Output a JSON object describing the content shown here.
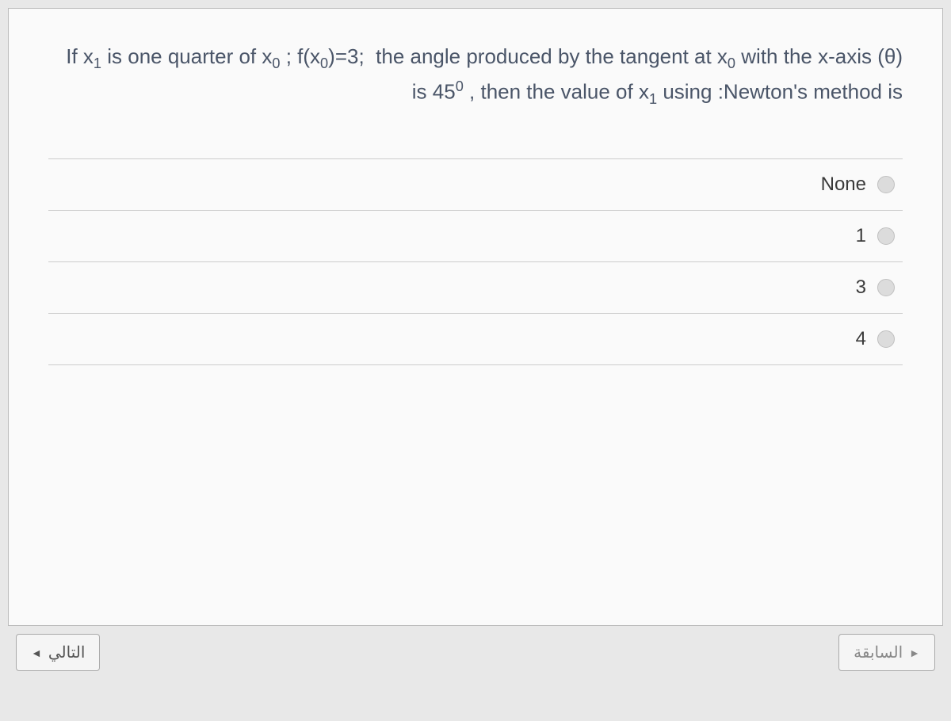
{
  "question": {
    "html": "If x<sub>1</sub> is one quarter of x<sub>0</sub> ; f(x<sub>0</sub>)=3; &nbsp;the angle produced by the tangent at x<sub>0</sub> with the x-axis (θ) is 45<sup>0</sup> , then the value of x<sub>1</sub> using :Newton's method is"
  },
  "options": [
    {
      "label": "None"
    },
    {
      "label": "1"
    },
    {
      "label": "3"
    },
    {
      "label": "4"
    }
  ],
  "nav": {
    "next": "التالي",
    "prev": "السابقة"
  }
}
